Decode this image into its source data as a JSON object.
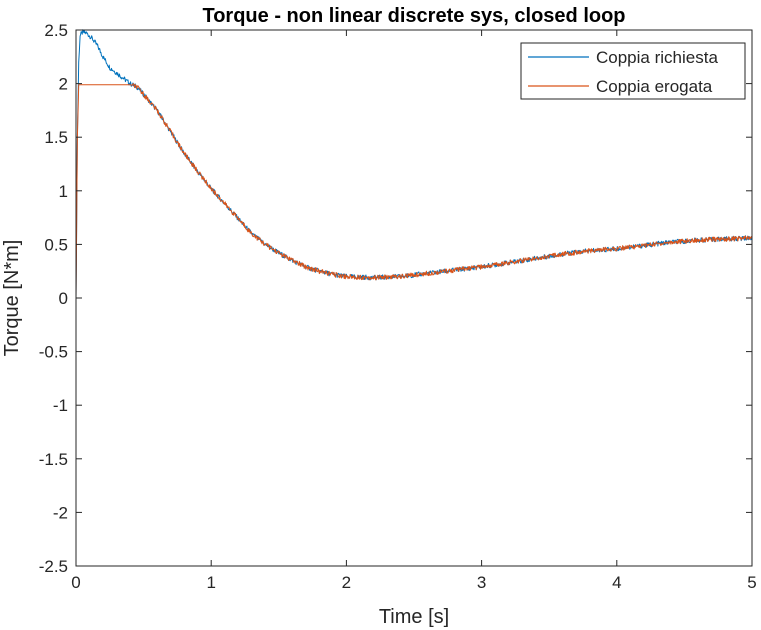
{
  "chart_data": {
    "type": "line",
    "title": "Torque - non linear discrete sys, closed loop",
    "xlabel": "Time [s]",
    "ylabel": "Torque [N*m]",
    "xlim": [
      0,
      5
    ],
    "ylim": [
      -2.5,
      2.5
    ],
    "x_ticks": [
      0,
      1,
      2,
      3,
      4,
      5
    ],
    "x_tick_labels": [
      "0",
      "1",
      "2",
      "3",
      "4",
      "5"
    ],
    "y_ticks": [
      2.5,
      2,
      1.5,
      1,
      0.5,
      0,
      -0.5,
      -1,
      -1.5,
      -2,
      -2.5
    ],
    "y_tick_labels": [
      "2.5",
      "2",
      "1.5",
      "1",
      "0.5",
      "0",
      "-0.5",
      "-1",
      "-1.5",
      "-2",
      "-2.5"
    ],
    "grid": false,
    "legend_position": "top-right",
    "series": [
      {
        "name": "Coppia richiesta",
        "color": "#0072BD",
        "x": [
          0,
          0.01,
          0.02,
          0.03,
          0.05,
          0.08,
          0.12,
          0.16,
          0.2,
          0.25,
          0.3,
          0.35,
          0.4,
          0.45,
          0.5,
          0.6,
          0.7,
          0.8,
          0.9,
          1.0,
          1.1,
          1.2,
          1.3,
          1.4,
          1.5,
          1.6,
          1.7,
          1.8,
          1.9,
          2.0,
          2.2,
          2.4,
          2.6,
          2.8,
          3.0,
          3.2,
          3.4,
          3.6,
          3.8,
          4.0,
          4.2,
          4.4,
          4.6,
          4.8,
          5.0
        ],
        "y": [
          0,
          1.5,
          2.2,
          2.45,
          2.48,
          2.47,
          2.42,
          2.35,
          2.25,
          2.15,
          2.1,
          2.05,
          2.0,
          1.97,
          1.9,
          1.75,
          1.55,
          1.35,
          1.18,
          1.02,
          0.88,
          0.74,
          0.6,
          0.5,
          0.42,
          0.35,
          0.29,
          0.25,
          0.22,
          0.2,
          0.19,
          0.2,
          0.23,
          0.26,
          0.29,
          0.33,
          0.37,
          0.41,
          0.44,
          0.46,
          0.49,
          0.52,
          0.54,
          0.55,
          0.56
        ]
      },
      {
        "name": "Coppia erogata",
        "color": "#D95319",
        "x": [
          0,
          0.01,
          0.02,
          0.03,
          0.05,
          0.08,
          0.12,
          0.16,
          0.2,
          0.25,
          0.3,
          0.35,
          0.4,
          0.45,
          0.5,
          0.6,
          0.7,
          0.8,
          0.9,
          1.0,
          1.1,
          1.2,
          1.3,
          1.4,
          1.5,
          1.6,
          1.7,
          1.8,
          1.9,
          2.0,
          2.2,
          2.4,
          2.6,
          2.8,
          3.0,
          3.2,
          3.4,
          3.6,
          3.8,
          4.0,
          4.2,
          4.4,
          4.6,
          4.8,
          5.0
        ],
        "y": [
          0,
          1.5,
          1.99,
          1.99,
          1.99,
          1.99,
          1.99,
          1.99,
          1.99,
          1.99,
          1.99,
          1.99,
          1.99,
          1.97,
          1.9,
          1.75,
          1.55,
          1.35,
          1.18,
          1.02,
          0.88,
          0.74,
          0.6,
          0.5,
          0.42,
          0.35,
          0.29,
          0.25,
          0.22,
          0.2,
          0.19,
          0.2,
          0.23,
          0.26,
          0.29,
          0.33,
          0.37,
          0.41,
          0.44,
          0.46,
          0.49,
          0.52,
          0.54,
          0.55,
          0.56
        ]
      }
    ]
  }
}
